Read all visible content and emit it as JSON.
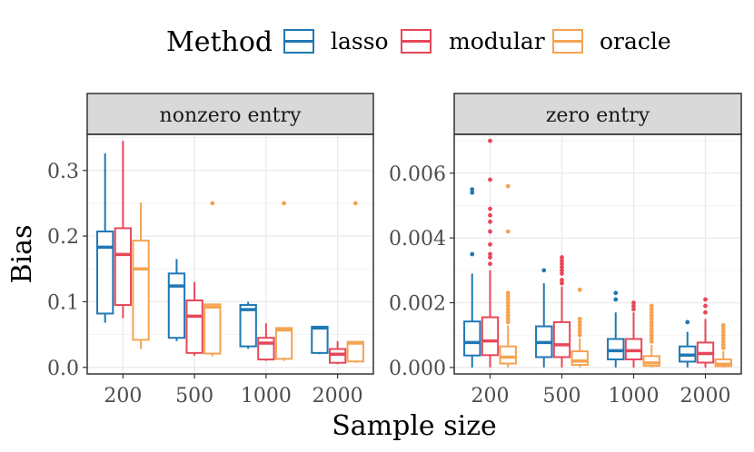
{
  "legend": {
    "title": "Method",
    "items": [
      {
        "key": "lasso",
        "label": "lasso",
        "color": "#1f78b4"
      },
      {
        "key": "modular",
        "label": "modular",
        "color": "#e8475a"
      },
      {
        "key": "oracle",
        "label": "oracle",
        "color": "#f5a352"
      }
    ]
  },
  "chart_data": {
    "type": "boxplot",
    "xlabel": "Sample size",
    "ylabel": "Bias",
    "categories": [
      "200",
      "500",
      "1000",
      "2000"
    ],
    "legend_position": "top",
    "grid": true,
    "panels": [
      {
        "title": "nonzero entry",
        "ylim": [
          -0.01,
          0.355
        ],
        "yticks": [
          0.0,
          0.1,
          0.2,
          0.3
        ],
        "ytick_labels": [
          "0.0",
          "0.1",
          "0.2",
          "0.3"
        ],
        "series": [
          {
            "name": "lasso",
            "boxes": [
              {
                "min": 0.068,
                "q1": 0.082,
                "median": 0.183,
                "q3": 0.207,
                "max": 0.326,
                "outliers": []
              },
              {
                "min": 0.04,
                "q1": 0.045,
                "median": 0.124,
                "q3": 0.143,
                "max": 0.165,
                "outliers": []
              },
              {
                "min": 0.028,
                "q1": 0.032,
                "median": 0.088,
                "q3": 0.095,
                "max": 0.1,
                "outliers": []
              },
              {
                "min": 0.02,
                "q1": 0.022,
                "median": 0.06,
                "q3": 0.062,
                "max": 0.063,
                "outliers": []
              }
            ]
          },
          {
            "name": "modular",
            "boxes": [
              {
                "min": 0.075,
                "q1": 0.095,
                "median": 0.172,
                "q3": 0.212,
                "max": 0.345,
                "outliers": []
              },
              {
                "min": 0.018,
                "q1": 0.022,
                "median": 0.078,
                "q3": 0.102,
                "max": 0.13,
                "outliers": []
              },
              {
                "min": 0.01,
                "q1": 0.012,
                "median": 0.037,
                "q3": 0.045,
                "max": 0.067,
                "outliers": []
              },
              {
                "min": 0.005,
                "q1": 0.007,
                "median": 0.02,
                "q3": 0.028,
                "max": 0.04,
                "outliers": []
              }
            ]
          },
          {
            "name": "oracle",
            "boxes": [
              {
                "min": 0.028,
                "q1": 0.042,
                "median": 0.15,
                "q3": 0.193,
                "max": 0.251,
                "outliers": []
              },
              {
                "min": 0.017,
                "q1": 0.021,
                "median": 0.092,
                "q3": 0.096,
                "max": 0.097,
                "outliers": [
                  0.25
                ]
              },
              {
                "min": 0.01,
                "q1": 0.013,
                "median": 0.057,
                "q3": 0.06,
                "max": 0.061,
                "outliers": [
                  0.25
                ]
              },
              {
                "min": 0.007,
                "q1": 0.009,
                "median": 0.037,
                "q3": 0.039,
                "max": 0.04,
                "outliers": [
                  0.25
                ]
              }
            ]
          }
        ]
      },
      {
        "title": "zero entry",
        "ylim": [
          -0.0002,
          0.0072
        ],
        "yticks": [
          0.0,
          0.002,
          0.004,
          0.006
        ],
        "ytick_labels": [
          "0.000",
          "0.002",
          "0.004",
          "0.006"
        ],
        "series": [
          {
            "name": "lasso",
            "boxes": [
              {
                "min": 0.0,
                "q1": 0.00037,
                "median": 0.00077,
                "q3": 0.00142,
                "max": 0.0029,
                "outliers": [
                  0.0035,
                  0.0054,
                  0.0055
                ]
              },
              {
                "min": 0.0,
                "q1": 0.00032,
                "median": 0.00077,
                "q3": 0.00127,
                "max": 0.0026,
                "outliers": [
                  0.003
                ]
              },
              {
                "min": 0.0,
                "q1": 0.00025,
                "median": 0.00052,
                "q3": 0.00088,
                "max": 0.0017,
                "outliers": [
                  0.0021,
                  0.0023
                ]
              },
              {
                "min": 0.0,
                "q1": 0.00018,
                "median": 0.00038,
                "q3": 0.00065,
                "max": 0.0011,
                "outliers": [
                  0.0014
                ]
              }
            ]
          },
          {
            "name": "modular",
            "boxes": [
              {
                "min": 0.0,
                "q1": 0.00038,
                "median": 0.00082,
                "q3": 0.00155,
                "max": 0.003,
                "outliers": [
                  0.0032,
                  0.0034,
                  0.0035,
                  0.0038,
                  0.0042,
                  0.0045,
                  0.0047,
                  0.0049,
                  0.0058,
                  0.007
                ]
              },
              {
                "min": 0.0,
                "q1": 0.00032,
                "median": 0.0007,
                "q3": 0.0014,
                "max": 0.0025,
                "outliers": [
                  0.0026,
                  0.0027,
                  0.0029,
                  0.003,
                  0.0031,
                  0.0032,
                  0.0033,
                  0.0034
                ]
              },
              {
                "min": 0.0,
                "q1": 0.00025,
                "median": 0.00052,
                "q3": 0.00088,
                "max": 0.0017,
                "outliers": [
                  0.0018,
                  0.0019,
                  0.002
                ]
              },
              {
                "min": 0.0,
                "q1": 0.00015,
                "median": 0.00043,
                "q3": 0.00077,
                "max": 0.0015,
                "outliers": [
                  0.0017,
                  0.0019,
                  0.0021
                ]
              }
            ]
          },
          {
            "name": "oracle",
            "boxes": [
              {
                "min": 0.0,
                "q1": 0.00012,
                "median": 0.00032,
                "q3": 0.00065,
                "max": 0.0013,
                "outliers": [
                  0.0014,
                  0.0015,
                  0.0016,
                  0.0017,
                  0.0018,
                  0.0019,
                  0.002,
                  0.0021,
                  0.0022,
                  0.0023,
                  0.0042,
                  0.0056
                ]
              },
              {
                "min": 0.0,
                "q1": 8e-05,
                "median": 0.0002,
                "q3": 0.0005,
                "max": 0.0009,
                "outliers": [
                  0.001,
                  0.0011,
                  0.0012,
                  0.0013,
                  0.0014,
                  0.0015,
                  0.0024
                ]
              },
              {
                "min": 0.0,
                "q1": 5e-05,
                "median": 0.00014,
                "q3": 0.00035,
                "max": 0.0007,
                "outliers": [
                  0.0008,
                  0.0009,
                  0.001,
                  0.0011,
                  0.0012,
                  0.0013,
                  0.0014,
                  0.0015,
                  0.0016,
                  0.0017,
                  0.0018,
                  0.0019
                ]
              },
              {
                "min": 0.0,
                "q1": 4e-05,
                "median": 0.0001,
                "q3": 0.00025,
                "max": 0.0005,
                "outliers": [
                  0.0006,
                  0.0007,
                  0.0008,
                  0.0009,
                  0.001,
                  0.0011,
                  0.0012,
                  0.0013
                ]
              }
            ]
          }
        ]
      }
    ]
  }
}
